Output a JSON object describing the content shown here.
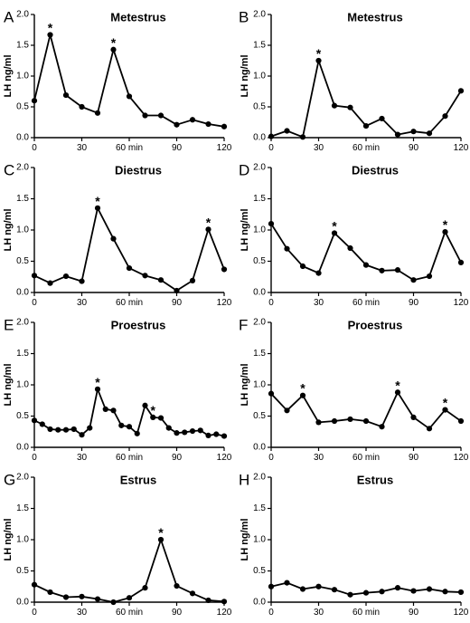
{
  "ylabel": "LH ng/ml",
  "x_ticks": [
    "0",
    "30",
    "60 min",
    "90",
    "120"
  ],
  "y_ticks": [
    "0.0",
    "0.5",
    "1.0",
    "1.5",
    "2.0"
  ],
  "peak_marker": "*",
  "chart_data": [
    {
      "panel": "A",
      "type": "line",
      "title": "Metestrus",
      "xlabel": "",
      "ylabel": "LH ng/ml",
      "xlim": [
        0,
        120
      ],
      "ylim": [
        0,
        2.0
      ],
      "x": [
        0,
        10,
        20,
        30,
        40,
        50,
        60,
        70,
        80,
        90,
        100,
        110,
        120
      ],
      "values": [
        0.6,
        1.67,
        0.69,
        0.5,
        0.4,
        1.43,
        0.67,
        0.36,
        0.36,
        0.21,
        0.29,
        0.22,
        0.18
      ],
      "peaks_x": [
        10,
        50
      ]
    },
    {
      "panel": "B",
      "type": "line",
      "title": "Metestrus",
      "xlabel": "",
      "ylabel": "LH ng/ml",
      "xlim": [
        0,
        120
      ],
      "ylim": [
        0,
        2.0
      ],
      "x": [
        0,
        10,
        20,
        30,
        40,
        50,
        60,
        70,
        80,
        90,
        100,
        110,
        120
      ],
      "values": [
        0.02,
        0.11,
        0.01,
        1.25,
        0.52,
        0.49,
        0.19,
        0.31,
        0.05,
        0.1,
        0.07,
        0.35,
        0.76
      ],
      "peaks_x": [
        30
      ]
    },
    {
      "panel": "C",
      "type": "line",
      "title": "Diestrus",
      "xlabel": "",
      "ylabel": "LH ng/ml",
      "xlim": [
        0,
        120
      ],
      "ylim": [
        0,
        2.0
      ],
      "x": [
        0,
        10,
        20,
        30,
        40,
        50,
        60,
        70,
        80,
        90,
        100,
        110,
        120
      ],
      "values": [
        0.27,
        0.15,
        0.26,
        0.18,
        1.35,
        0.86,
        0.39,
        0.27,
        0.2,
        0.03,
        0.19,
        1.01,
        0.37
      ],
      "peaks_x": [
        40,
        110
      ]
    },
    {
      "panel": "D",
      "type": "line",
      "title": "Diestrus",
      "xlabel": "",
      "ylabel": "LH ng/ml",
      "xlim": [
        0,
        120
      ],
      "ylim": [
        0,
        2.0
      ],
      "x": [
        0,
        10,
        20,
        30,
        40,
        50,
        60,
        70,
        80,
        90,
        100,
        110,
        120
      ],
      "values": [
        1.1,
        0.7,
        0.42,
        0.31,
        0.95,
        0.71,
        0.44,
        0.35,
        0.36,
        0.2,
        0.26,
        0.97,
        0.48
      ],
      "peaks_x": [
        40,
        110
      ]
    },
    {
      "panel": "E",
      "type": "line",
      "title": "Proestrus",
      "xlabel": "",
      "ylabel": "LH ng/ml",
      "xlim": [
        0,
        120
      ],
      "ylim": [
        0,
        2.0
      ],
      "x": [
        0,
        5,
        10,
        15,
        20,
        25,
        30,
        35,
        40,
        45,
        50,
        55,
        60,
        65,
        70,
        75,
        80,
        85,
        90,
        95,
        100,
        105,
        110,
        115,
        120
      ],
      "values": [
        0.43,
        0.37,
        0.29,
        0.28,
        0.28,
        0.29,
        0.2,
        0.31,
        0.93,
        0.61,
        0.59,
        0.35,
        0.33,
        0.22,
        0.67,
        0.48,
        0.47,
        0.31,
        0.23,
        0.24,
        0.26,
        0.27,
        0.19,
        0.21,
        0.18
      ],
      "peaks_x": [
        40,
        75
      ]
    },
    {
      "panel": "F",
      "type": "line",
      "title": "Proestrus",
      "xlabel": "",
      "ylabel": "LH ng/ml",
      "xlim": [
        0,
        120
      ],
      "ylim": [
        0,
        2.0
      ],
      "x": [
        0,
        10,
        20,
        30,
        40,
        50,
        60,
        70,
        80,
        90,
        100,
        110,
        120
      ],
      "values": [
        0.86,
        0.59,
        0.83,
        0.4,
        0.42,
        0.45,
        0.42,
        0.33,
        0.88,
        0.48,
        0.3,
        0.6,
        0.42
      ],
      "peaks_x": [
        20,
        80,
        110
      ]
    },
    {
      "panel": "G",
      "type": "line",
      "title": "Estrus",
      "xlabel": "",
      "ylabel": "LH ng/ml",
      "xlim": [
        0,
        120
      ],
      "ylim": [
        0,
        2.0
      ],
      "x": [
        0,
        10,
        20,
        30,
        40,
        50,
        60,
        70,
        80,
        90,
        100,
        110,
        120
      ],
      "values": [
        0.28,
        0.16,
        0.08,
        0.09,
        0.05,
        0.0,
        0.07,
        0.23,
        1.0,
        0.26,
        0.14,
        0.03,
        0.01
      ],
      "peaks_x": [
        80
      ]
    },
    {
      "panel": "H",
      "type": "line",
      "title": "Estrus",
      "xlabel": "",
      "ylabel": "LH ng/ml",
      "xlim": [
        0,
        120
      ],
      "ylim": [
        0,
        2.0
      ],
      "x": [
        0,
        10,
        20,
        30,
        40,
        50,
        60,
        70,
        80,
        90,
        100,
        110,
        120
      ],
      "values": [
        0.25,
        0.31,
        0.21,
        0.25,
        0.2,
        0.12,
        0.15,
        0.17,
        0.23,
        0.18,
        0.21,
        0.17,
        0.16
      ],
      "peaks_x": []
    }
  ]
}
